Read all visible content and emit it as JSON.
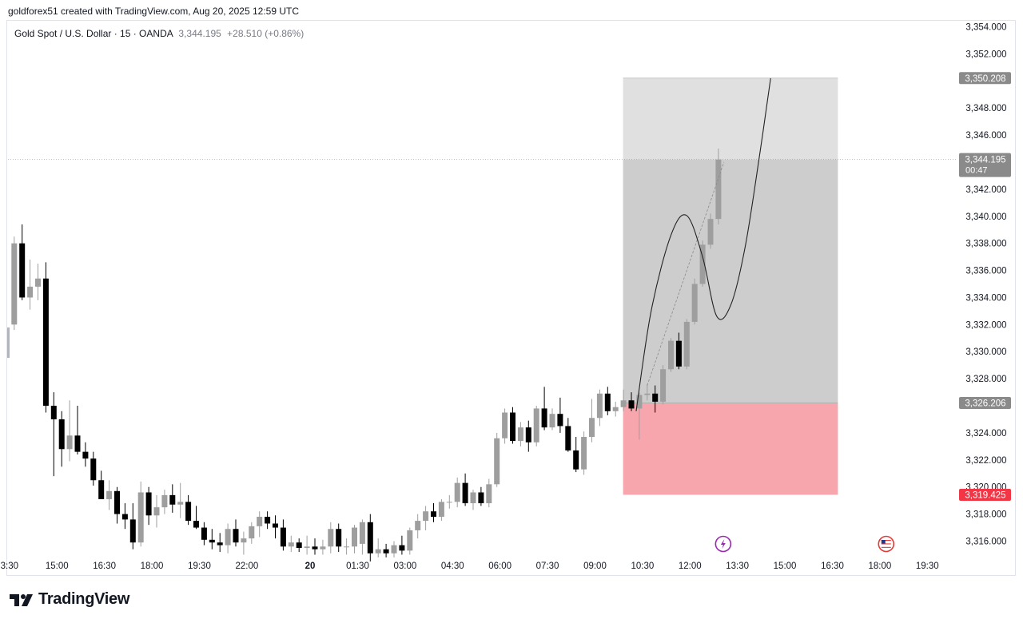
{
  "header": {
    "caption": "goldforex51 created with TradingView.com, Aug 20, 2025 12:59 UTC"
  },
  "legend": {
    "symbol": "Gold Spot / U.S. Dollar · 15 · OANDA",
    "price": "3,344.195",
    "change": "+28.510 (+0.86%)"
  },
  "branding": {
    "name": "TradingView"
  },
  "colors": {
    "up": "#9e9e9e",
    "down": "#000000",
    "target_zone": "#e0e0e0",
    "profit_zone": "#cdcdcd",
    "stop_zone": "#f7a6ad",
    "stop_label": "#f23645",
    "label_gray": "#8a8a8a",
    "event_purple": "#9c27b0",
    "axis_text": "#131722"
  },
  "chart_data": {
    "type": "candlestick",
    "title": "Gold Spot / U.S. Dollar · 15 · OANDA",
    "ylim": [
      3314.0,
      3354.8
    ],
    "y_ticks": [
      {
        "value": 3354,
        "label": "3,354.000"
      },
      {
        "value": 3352,
        "label": "3,352.000"
      },
      {
        "value": 3348,
        "label": "3,348.000"
      },
      {
        "value": 3346,
        "label": "3,346.000"
      },
      {
        "value": 3342,
        "label": "3,342.000"
      },
      {
        "value": 3340,
        "label": "3,340.000"
      },
      {
        "value": 3338,
        "label": "3,338.000"
      },
      {
        "value": 3336,
        "label": "3,336.000"
      },
      {
        "value": 3334,
        "label": "3,334.000"
      },
      {
        "value": 3332,
        "label": "3,332.000"
      },
      {
        "value": 3330,
        "label": "3,330.000"
      },
      {
        "value": 3328,
        "label": "3,328.000"
      },
      {
        "value": 3324,
        "label": "3,324.000"
      },
      {
        "value": 3322,
        "label": "3,322.000"
      },
      {
        "value": 3320,
        "label": "3,320.000"
      },
      {
        "value": 3318,
        "label": "3,318.000"
      },
      {
        "value": 3316,
        "label": "3,316.000"
      }
    ],
    "x_ticks": [
      {
        "index": -0.6,
        "label": "3:30",
        "bold": false
      },
      {
        "index": 5.4,
        "label": "15:00",
        "bold": false
      },
      {
        "index": 11.4,
        "label": "16:30",
        "bold": false
      },
      {
        "index": 17.4,
        "label": "18:00",
        "bold": false
      },
      {
        "index": 23.4,
        "label": "19:30",
        "bold": false
      },
      {
        "index": 29.4,
        "label": "22:00",
        "bold": false
      },
      {
        "index": 37.4,
        "label": "20",
        "bold": true
      },
      {
        "index": 43.4,
        "label": "01:30",
        "bold": false
      },
      {
        "index": 49.4,
        "label": "03:00",
        "bold": false
      },
      {
        "index": 55.4,
        "label": "04:30",
        "bold": false
      },
      {
        "index": 61.4,
        "label": "06:00",
        "bold": false
      },
      {
        "index": 67.4,
        "label": "07:30",
        "bold": false
      },
      {
        "index": 73.4,
        "label": "09:00",
        "bold": false
      },
      {
        "index": 79.4,
        "label": "10:30",
        "bold": false
      },
      {
        "index": 85.4,
        "label": "12:00",
        "bold": false
      },
      {
        "index": 91.4,
        "label": "13:30",
        "bold": false
      },
      {
        "index": 97.4,
        "label": "15:00",
        "bold": false
      },
      {
        "index": 103.4,
        "label": "16:30",
        "bold": false
      },
      {
        "index": 109.4,
        "label": "18:00",
        "bold": false
      },
      {
        "index": 115.4,
        "label": "19:30",
        "bold": false
      }
    ],
    "candles": [
      {
        "o": 3332.0,
        "h": 3338.5,
        "l": 3331.6,
        "c": 3338.0
      },
      {
        "o": 3338.0,
        "h": 3339.4,
        "l": 3333.8,
        "c": 3334.0
      },
      {
        "o": 3334.0,
        "h": 3336.8,
        "l": 3333.1,
        "c": 3334.8
      },
      {
        "o": 3334.8,
        "h": 3336.5,
        "l": 3333.8,
        "c": 3335.4
      },
      {
        "o": 3335.4,
        "h": 3336.6,
        "l": 3325.5,
        "c": 3326.0
      },
      {
        "o": 3326.0,
        "h": 3327.0,
        "l": 3320.8,
        "c": 3325.0
      },
      {
        "o": 3325.0,
        "h": 3325.6,
        "l": 3321.5,
        "c": 3322.8
      },
      {
        "o": 3322.8,
        "h": 3326.4,
        "l": 3321.9,
        "c": 3323.8
      },
      {
        "o": 3323.8,
        "h": 3326.0,
        "l": 3322.4,
        "c": 3322.6
      },
      {
        "o": 3322.6,
        "h": 3323.3,
        "l": 3321.5,
        "c": 3322.1
      },
      {
        "o": 3322.1,
        "h": 3322.6,
        "l": 3320.1,
        "c": 3320.5
      },
      {
        "o": 3320.5,
        "h": 3321.2,
        "l": 3319.3,
        "c": 3319.1
      },
      {
        "o": 3319.1,
        "h": 3320.5,
        "l": 3318.3,
        "c": 3319.7
      },
      {
        "o": 3319.7,
        "h": 3320.0,
        "l": 3317.3,
        "c": 3318.0
      },
      {
        "o": 3318.0,
        "h": 3318.8,
        "l": 3316.9,
        "c": 3317.6
      },
      {
        "o": 3317.6,
        "h": 3318.8,
        "l": 3315.4,
        "c": 3315.9
      },
      {
        "o": 3315.9,
        "h": 3320.4,
        "l": 3315.6,
        "c": 3319.6
      },
      {
        "o": 3319.6,
        "h": 3320.0,
        "l": 3317.2,
        "c": 3317.9
      },
      {
        "o": 3317.9,
        "h": 3319.4,
        "l": 3317.0,
        "c": 3318.5
      },
      {
        "o": 3318.5,
        "h": 3319.8,
        "l": 3318.0,
        "c": 3319.4
      },
      {
        "o": 3319.4,
        "h": 3320.2,
        "l": 3318.1,
        "c": 3318.7
      },
      {
        "o": 3318.7,
        "h": 3320.3,
        "l": 3317.7,
        "c": 3318.9
      },
      {
        "o": 3318.9,
        "h": 3319.4,
        "l": 3317.2,
        "c": 3317.5
      },
      {
        "o": 3317.5,
        "h": 3318.6,
        "l": 3316.9,
        "c": 3317.0
      },
      {
        "o": 3317.0,
        "h": 3317.4,
        "l": 3315.7,
        "c": 3316.1
      },
      {
        "o": 3316.1,
        "h": 3316.9,
        "l": 3315.4,
        "c": 3315.9
      },
      {
        "o": 3315.9,
        "h": 3316.6,
        "l": 3315.2,
        "c": 3315.7
      },
      {
        "o": 3315.7,
        "h": 3317.3,
        "l": 3315.1,
        "c": 3316.9
      },
      {
        "o": 3316.9,
        "h": 3317.6,
        "l": 3315.6,
        "c": 3315.9
      },
      {
        "o": 3315.9,
        "h": 3316.7,
        "l": 3315.0,
        "c": 3316.2
      },
      {
        "o": 3316.2,
        "h": 3317.4,
        "l": 3315.8,
        "c": 3317.1
      },
      {
        "o": 3317.1,
        "h": 3318.2,
        "l": 3316.3,
        "c": 3317.8
      },
      {
        "o": 3317.8,
        "h": 3318.2,
        "l": 3316.9,
        "c": 3317.3
      },
      {
        "o": 3317.3,
        "h": 3317.9,
        "l": 3316.2,
        "c": 3317.0
      },
      {
        "o": 3317.0,
        "h": 3317.6,
        "l": 3315.3,
        "c": 3315.6
      },
      {
        "o": 3315.6,
        "h": 3316.4,
        "l": 3315.2,
        "c": 3315.9
      },
      {
        "o": 3315.9,
        "h": 3316.2,
        "l": 3315.2,
        "c": 3315.5
      },
      {
        "o": 3315.5,
        "h": 3316.4,
        "l": 3315.0,
        "c": 3315.6
      },
      {
        "o": 3315.6,
        "h": 3316.2,
        "l": 3315.0,
        "c": 3315.4
      },
      {
        "o": 3315.4,
        "h": 3316.1,
        "l": 3315.0,
        "c": 3315.6
      },
      {
        "o": 3315.6,
        "h": 3317.4,
        "l": 3315.1,
        "c": 3316.9
      },
      {
        "o": 3316.9,
        "h": 3317.3,
        "l": 3315.2,
        "c": 3315.6
      },
      {
        "o": 3315.6,
        "h": 3316.2,
        "l": 3315.0,
        "c": 3315.6
      },
      {
        "o": 3315.6,
        "h": 3317.2,
        "l": 3315.1,
        "c": 3317.0
      },
      {
        "o": 3315.8,
        "h": 3317.6,
        "l": 3315.0,
        "c": 3317.4
      },
      {
        "o": 3317.4,
        "h": 3318.0,
        "l": 3314.5,
        "c": 3315.1
      },
      {
        "o": 3315.1,
        "h": 3316.2,
        "l": 3314.8,
        "c": 3315.4
      },
      {
        "o": 3315.4,
        "h": 3315.8,
        "l": 3314.8,
        "c": 3315.1
      },
      {
        "o": 3315.1,
        "h": 3316.0,
        "l": 3314.8,
        "c": 3315.7
      },
      {
        "o": 3315.7,
        "h": 3316.4,
        "l": 3315.0,
        "c": 3315.3
      },
      {
        "o": 3315.3,
        "h": 3317.0,
        "l": 3315.0,
        "c": 3316.8
      },
      {
        "o": 3316.8,
        "h": 3318.0,
        "l": 3316.2,
        "c": 3317.5
      },
      {
        "o": 3317.5,
        "h": 3318.6,
        "l": 3316.8,
        "c": 3318.2
      },
      {
        "o": 3318.2,
        "h": 3318.8,
        "l": 3317.4,
        "c": 3317.8
      },
      {
        "o": 3317.8,
        "h": 3319.1,
        "l": 3317.5,
        "c": 3318.9
      },
      {
        "o": 3318.9,
        "h": 3319.4,
        "l": 3318.4,
        "c": 3318.9
      },
      {
        "o": 3318.9,
        "h": 3320.7,
        "l": 3318.5,
        "c": 3320.3
      },
      {
        "o": 3320.3,
        "h": 3321.0,
        "l": 3318.6,
        "c": 3318.8
      },
      {
        "o": 3318.8,
        "h": 3319.8,
        "l": 3318.3,
        "c": 3319.6
      },
      {
        "o": 3319.6,
        "h": 3320.0,
        "l": 3318.6,
        "c": 3318.8
      },
      {
        "o": 3318.8,
        "h": 3320.6,
        "l": 3318.5,
        "c": 3320.2
      },
      {
        "o": 3320.2,
        "h": 3324.0,
        "l": 3320.0,
        "c": 3323.6
      },
      {
        "o": 3323.6,
        "h": 3325.8,
        "l": 3323.2,
        "c": 3325.5
      },
      {
        "o": 3325.5,
        "h": 3325.9,
        "l": 3323.2,
        "c": 3323.4
      },
      {
        "o": 3323.4,
        "h": 3324.8,
        "l": 3323.0,
        "c": 3324.4
      },
      {
        "o": 3324.4,
        "h": 3324.9,
        "l": 3322.6,
        "c": 3323.3
      },
      {
        "o": 3323.3,
        "h": 3326.0,
        "l": 3323.0,
        "c": 3325.8
      },
      {
        "o": 3325.8,
        "h": 3327.4,
        "l": 3324.2,
        "c": 3324.4
      },
      {
        "o": 3324.4,
        "h": 3325.8,
        "l": 3324.2,
        "c": 3325.4
      },
      {
        "o": 3325.4,
        "h": 3326.6,
        "l": 3324.0,
        "c": 3324.5
      },
      {
        "o": 3324.5,
        "h": 3325.1,
        "l": 3322.6,
        "c": 3322.7
      },
      {
        "o": 3322.7,
        "h": 3323.7,
        "l": 3321.1,
        "c": 3321.3
      },
      {
        "o": 3321.3,
        "h": 3324.1,
        "l": 3320.9,
        "c": 3323.7
      },
      {
        "o": 3323.7,
        "h": 3326.5,
        "l": 3323.3,
        "c": 3325.1
      },
      {
        "o": 3325.1,
        "h": 3327.2,
        "l": 3324.5,
        "c": 3326.9
      },
      {
        "o": 3326.9,
        "h": 3327.4,
        "l": 3325.3,
        "c": 3325.6
      },
      {
        "o": 3325.6,
        "h": 3326.3,
        "l": 3325.2,
        "c": 3325.9
      },
      {
        "o": 3325.9,
        "h": 3327.2,
        "l": 3325.6,
        "c": 3326.4
      },
      {
        "o": 3326.4,
        "h": 3327.0,
        "l": 3325.6,
        "c": 3325.8
      },
      {
        "o": 3325.8,
        "h": 3327.0,
        "l": 3323.5,
        "c": 3326.8
      },
      {
        "o": 3326.8,
        "h": 3327.6,
        "l": 3326.4,
        "c": 3326.9
      },
      {
        "o": 3326.9,
        "h": 3327.5,
        "l": 3325.5,
        "c": 3326.3
      },
      {
        "o": 3326.3,
        "h": 3329.0,
        "l": 3326.1,
        "c": 3328.7
      },
      {
        "o": 3328.7,
        "h": 3331.0,
        "l": 3328.5,
        "c": 3330.8
      },
      {
        "o": 3330.8,
        "h": 3331.4,
        "l": 3328.7,
        "c": 3328.9
      },
      {
        "o": 3328.9,
        "h": 3332.4,
        "l": 3328.7,
        "c": 3332.2
      },
      {
        "o": 3332.2,
        "h": 3335.4,
        "l": 3332.0,
        "c": 3335.0
      },
      {
        "o": 3335.0,
        "h": 3338.2,
        "l": 3334.8,
        "c": 3337.9
      },
      {
        "o": 3337.9,
        "h": 3340.2,
        "l": 3337.6,
        "c": 3339.8
      },
      {
        "o": 3339.8,
        "h": 3345.0,
        "l": 3339.4,
        "c": 3344.195
      }
    ],
    "position": {
      "entry": 3326.206,
      "target": 3350.208,
      "stop": 3319.425,
      "start_index": 77,
      "end_index": 104
    },
    "current_price": 3344.195,
    "bar_countdown": "00:47",
    "price_labels": {
      "target": "3,350.208",
      "current": "3,344.195",
      "entry": "3,326.206",
      "stop": "3,319.425"
    },
    "projection_path": [
      {
        "i": 78.6,
        "p": 3325.6
      },
      {
        "i": 80.5,
        "p": 3333.0
      },
      {
        "i": 83.0,
        "p": 3338.6
      },
      {
        "i": 85.0,
        "p": 3340.05
      },
      {
        "i": 87.0,
        "p": 3337.0
      },
      {
        "i": 88.8,
        "p": 3332.6
      },
      {
        "i": 90.6,
        "p": 3333.5
      },
      {
        "i": 92.4,
        "p": 3337.8
      },
      {
        "i": 94.2,
        "p": 3344.5
      },
      {
        "i": 95.6,
        "p": 3350.2
      }
    ],
    "trend_line": [
      {
        "i": 80.0,
        "p": 3327.5
      },
      {
        "i": 89.7,
        "p": 3344.0
      }
    ],
    "events": [
      {
        "index": 89.6,
        "type": "lightning"
      },
      {
        "index": 110.2,
        "type": "us-flag"
      }
    ]
  }
}
